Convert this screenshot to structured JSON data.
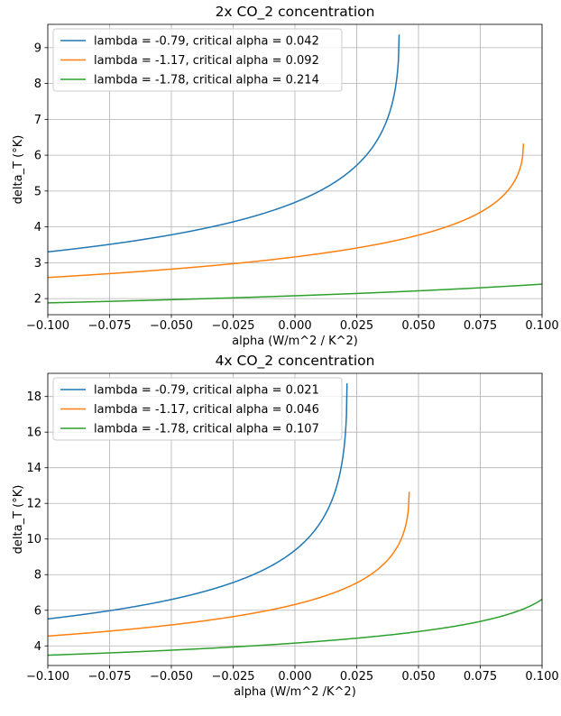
{
  "figure": {
    "background": "#ffffff",
    "grid_color": "#b0b0b0"
  },
  "chart_data": [
    {
      "type": "line",
      "title": "2x CO_2 concentration",
      "xlabel": "alpha (W/m^2 / K^2)",
      "ylabel": "delta_T (°K)",
      "xlim": [
        -0.1,
        0.1
      ],
      "ylim": [
        1.55,
        9.65
      ],
      "grid": true,
      "legend_position": "upper-left",
      "xticks": [
        -0.1,
        -0.075,
        -0.05,
        -0.025,
        0.0,
        0.025,
        0.05,
        0.075,
        0.1
      ],
      "xtick_labels": [
        "−0.100",
        "−0.075",
        "−0.050",
        "−0.025",
        "0.000",
        "0.025",
        "0.050",
        "0.075",
        "0.100"
      ],
      "yticks": [
        2,
        3,
        4,
        5,
        6,
        7,
        8,
        9
      ],
      "ytick_labels": [
        "2",
        "3",
        "4",
        "5",
        "6",
        "7",
        "8",
        "9"
      ],
      "series": [
        {
          "name": "lambda = -0.79, critical alpha = 0.042",
          "color": "#1f77b4",
          "forcing": 3.7,
          "lambda": -0.79,
          "critical_alpha": 0.042
        },
        {
          "name": "lambda = -1.17, critical alpha = 0.092",
          "color": "#ff7f0e",
          "forcing": 3.7,
          "lambda": -1.17,
          "critical_alpha": 0.092
        },
        {
          "name": "lambda = -1.78, critical alpha = 0.214",
          "color": "#2ca02c",
          "forcing": 3.7,
          "lambda": -1.78,
          "critical_alpha": 0.214
        }
      ]
    },
    {
      "type": "line",
      "title": "4x CO_2 concentration",
      "xlabel": "alpha (W/m^2 /K^2)",
      "ylabel": "delta_T (°K)",
      "xlim": [
        -0.1,
        0.1
      ],
      "ylim": [
        2.9,
        19.3
      ],
      "grid": true,
      "legend_position": "upper-left",
      "xticks": [
        -0.1,
        -0.075,
        -0.05,
        -0.025,
        0.0,
        0.025,
        0.05,
        0.075,
        0.1
      ],
      "xtick_labels": [
        "−0.100",
        "−0.075",
        "−0.050",
        "−0.025",
        "0.000",
        "0.025",
        "0.050",
        "0.075",
        "0.100"
      ],
      "yticks": [
        4,
        6,
        8,
        10,
        12,
        14,
        16,
        18
      ],
      "ytick_labels": [
        "4",
        "6",
        "8",
        "10",
        "12",
        "14",
        "16",
        "18"
      ],
      "series": [
        {
          "name": "lambda = -0.79, critical alpha = 0.021",
          "color": "#1f77b4",
          "forcing": 7.4,
          "lambda": -0.79,
          "critical_alpha": 0.021
        },
        {
          "name": "lambda = -1.17, critical alpha = 0.046",
          "color": "#ff7f0e",
          "forcing": 7.4,
          "lambda": -1.17,
          "critical_alpha": 0.046
        },
        {
          "name": "lambda = -1.78, critical alpha = 0.107",
          "color": "#2ca02c",
          "forcing": 7.4,
          "lambda": -1.78,
          "critical_alpha": 0.107
        }
      ]
    }
  ]
}
